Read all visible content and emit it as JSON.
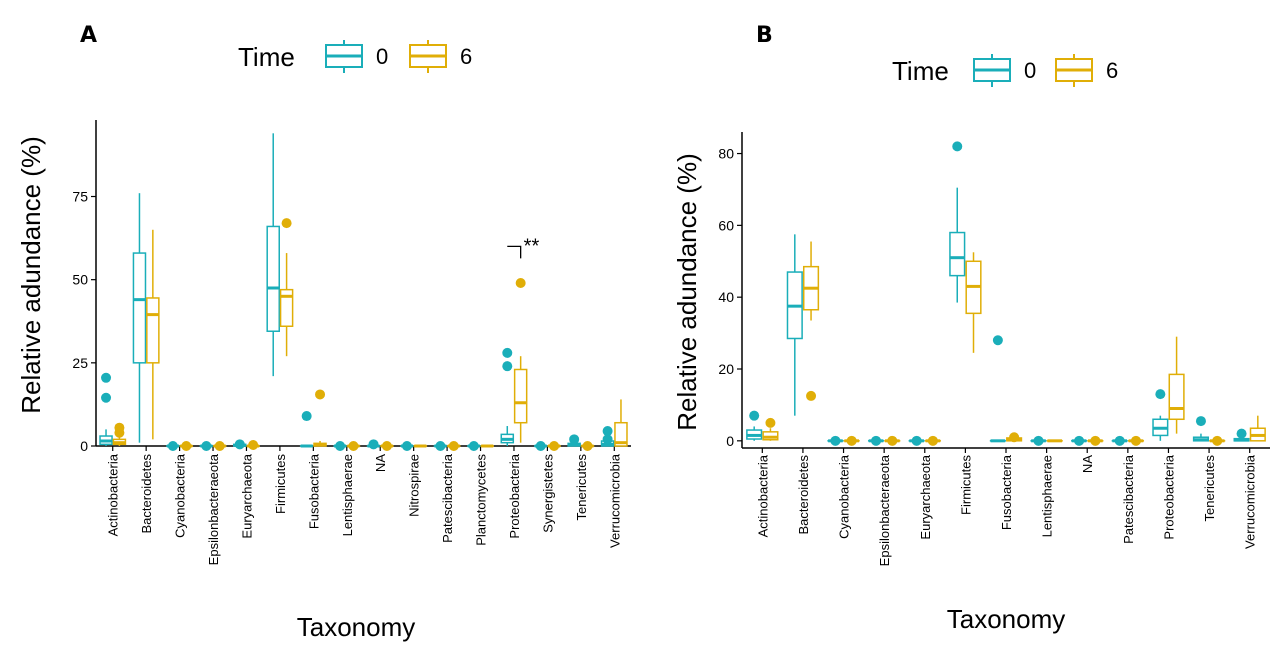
{
  "colors": {
    "t0": "#1AAEB9",
    "t6": "#E0AE07"
  },
  "chart_data": [
    {
      "panel": "A",
      "type": "box",
      "title": "",
      "xlabel": "Taxonomy",
      "ylabel": "Relative adundance (%)",
      "legend": {
        "title": "Time",
        "labels": [
          "0",
          "6"
        ],
        "position": "top"
      },
      "ylim": [
        0,
        98
      ],
      "yticks": [
        0,
        25,
        50,
        75
      ],
      "ytick_labels": [
        "0",
        "25",
        "50",
        "75"
      ],
      "categories": [
        "Actinobacteria",
        "Bacteroidetes",
        "Cyanobacteria",
        "Epsilonbacteraeota",
        "Euryarchaeota",
        "Firmicutes",
        "Fusobacteria",
        "Lentisphaerae",
        "NA",
        "Nitrospirae",
        "Patescibacteria",
        "Planctomycetes",
        "Proteobacteria",
        "Synergistetes",
        "Tenericutes",
        "Verrucomicrobia"
      ],
      "series": [
        {
          "name": "0",
          "boxes": [
            {
              "q1": 0.5,
              "med": 1.5,
              "q3": 3,
              "lo": 0,
              "hi": 5,
              "out": [
                14.5,
                20.5
              ]
            },
            {
              "q1": 25,
              "med": 44,
              "q3": 58,
              "lo": 1,
              "hi": 76,
              "out": []
            },
            {
              "q1": 0,
              "med": 0,
              "q3": 0,
              "lo": 0,
              "hi": 0,
              "out": [
                0
              ]
            },
            {
              "q1": 0,
              "med": 0,
              "q3": 0,
              "lo": 0,
              "hi": 0,
              "out": [
                0
              ]
            },
            {
              "q1": 0,
              "med": 0.2,
              "q3": 0.5,
              "lo": 0,
              "hi": 0.8,
              "out": [
                0.5
              ]
            },
            {
              "q1": 34.5,
              "med": 47.5,
              "q3": 66,
              "lo": 21,
              "hi": 94,
              "out": []
            },
            {
              "q1": 0,
              "med": 0,
              "q3": 0,
              "lo": 0,
              "hi": 0,
              "out": [
                9
              ]
            },
            {
              "q1": 0,
              "med": 0,
              "q3": 0,
              "lo": 0,
              "hi": 0,
              "out": [
                0
              ]
            },
            {
              "q1": 0,
              "med": 0,
              "q3": 0,
              "lo": 0,
              "hi": 0,
              "out": [
                0.5
              ]
            },
            {
              "q1": 0,
              "med": 0,
              "q3": 0,
              "lo": 0,
              "hi": 0,
              "out": [
                0
              ]
            },
            {
              "q1": 0,
              "med": 0,
              "q3": 0,
              "lo": 0,
              "hi": 0,
              "out": [
                0
              ]
            },
            {
              "q1": 0,
              "med": 0,
              "q3": 0,
              "lo": 0,
              "hi": 0,
              "out": [
                0
              ]
            },
            {
              "q1": 1,
              "med": 2,
              "q3": 3.5,
              "lo": 0,
              "hi": 6,
              "out": [
                24,
                28
              ]
            },
            {
              "q1": 0,
              "med": 0,
              "q3": 0,
              "lo": 0,
              "hi": 0,
              "out": [
                0
              ]
            },
            {
              "q1": 0,
              "med": 0.3,
              "q3": 0.8,
              "lo": 0,
              "hi": 1.5,
              "out": [
                2
              ]
            },
            {
              "q1": 0,
              "med": 0.5,
              "q3": 1.5,
              "lo": 0,
              "hi": 3,
              "out": [
                2,
                4.5
              ]
            }
          ]
        },
        {
          "name": "6",
          "boxes": [
            {
              "q1": 0.5,
              "med": 1,
              "q3": 2,
              "lo": 0,
              "hi": 3,
              "out": [
                4,
                5.5
              ]
            },
            {
              "q1": 25,
              "med": 39.5,
              "q3": 44.5,
              "lo": 2,
              "hi": 65,
              "out": []
            },
            {
              "q1": 0,
              "med": 0,
              "q3": 0,
              "lo": 0,
              "hi": 0,
              "out": [
                0
              ]
            },
            {
              "q1": 0,
              "med": 0,
              "q3": 0,
              "lo": 0,
              "hi": 0,
              "out": [
                0
              ]
            },
            {
              "q1": 0,
              "med": 0,
              "q3": 0,
              "lo": 0,
              "hi": 0,
              "out": [
                0.3
              ]
            },
            {
              "q1": 36,
              "med": 45,
              "q3": 47,
              "lo": 27,
              "hi": 58,
              "out": [
                67
              ]
            },
            {
              "q1": 0,
              "med": 0.3,
              "q3": 0.8,
              "lo": 0,
              "hi": 1.5,
              "out": [
                15.5
              ]
            },
            {
              "q1": 0,
              "med": 0,
              "q3": 0,
              "lo": 0,
              "hi": 0,
              "out": [
                0
              ]
            },
            {
              "q1": 0,
              "med": 0,
              "q3": 0,
              "lo": 0,
              "hi": 0,
              "out": [
                0
              ]
            },
            {
              "q1": 0,
              "med": 0,
              "q3": 0,
              "lo": 0,
              "hi": 0,
              "out": []
            },
            {
              "q1": 0,
              "med": 0,
              "q3": 0,
              "lo": 0,
              "hi": 0,
              "out": [
                0
              ]
            },
            {
              "q1": 0,
              "med": 0,
              "q3": 0,
              "lo": 0,
              "hi": 0,
              "out": []
            },
            {
              "q1": 7,
              "med": 13,
              "q3": 23,
              "lo": 1,
              "hi": 27,
              "out": [
                49
              ]
            },
            {
              "q1": 0,
              "med": 0,
              "q3": 0,
              "lo": 0,
              "hi": 0,
              "out": [
                0
              ]
            },
            {
              "q1": 0,
              "med": 0,
              "q3": 0,
              "lo": 0,
              "hi": 0,
              "out": [
                0
              ]
            },
            {
              "q1": 0,
              "med": 1,
              "q3": 7,
              "lo": 0,
              "hi": 14,
              "out": []
            }
          ]
        }
      ],
      "annotations": [
        {
          "category": "Proteobacteria",
          "text": "**",
          "y": 60
        }
      ]
    },
    {
      "panel": "B",
      "type": "box",
      "title": "",
      "xlabel": "Taxonomy",
      "ylabel": "Relative adundance (%)",
      "legend": {
        "title": "Time",
        "labels": [
          "0",
          "6"
        ],
        "position": "top"
      },
      "ylim": [
        -2,
        86
      ],
      "yticks": [
        0,
        20,
        40,
        60,
        80
      ],
      "ytick_labels": [
        "0",
        "20",
        "40",
        "60",
        "80"
      ],
      "categories": [
        "Actinobacteria",
        "Bacteroidetes",
        "Cyanobacteria",
        "Epsilonbacteraeota",
        "Euryarchaeota",
        "Firmicutes",
        "Fusobacteria",
        "Lentisphaerae",
        "NA",
        "Patescibacteria",
        "Proteobacteria",
        "Tenericutes",
        "Verrucomicrobia"
      ],
      "series": [
        {
          "name": "0",
          "boxes": [
            {
              "q1": 0.5,
              "med": 1.5,
              "q3": 3,
              "lo": 0,
              "hi": 4,
              "out": [
                7
              ]
            },
            {
              "q1": 28.5,
              "med": 37.5,
              "q3": 47,
              "lo": 7,
              "hi": 57.5,
              "out": []
            },
            {
              "q1": 0,
              "med": 0,
              "q3": 0,
              "lo": 0,
              "hi": 0,
              "out": [
                0
              ]
            },
            {
              "q1": 0,
              "med": 0,
              "q3": 0,
              "lo": 0,
              "hi": 0,
              "out": [
                0
              ]
            },
            {
              "q1": 0,
              "med": 0,
              "q3": 0,
              "lo": 0,
              "hi": 0,
              "out": [
                0
              ]
            },
            {
              "q1": 46,
              "med": 51,
              "q3": 58,
              "lo": 38.5,
              "hi": 70.5,
              "out": [
                82
              ]
            },
            {
              "q1": 0,
              "med": 0,
              "q3": 0,
              "lo": 0,
              "hi": 0,
              "out": [
                28
              ]
            },
            {
              "q1": 0,
              "med": 0,
              "q3": 0,
              "lo": 0,
              "hi": 0,
              "out": [
                0
              ]
            },
            {
              "q1": 0,
              "med": 0,
              "q3": 0,
              "lo": 0,
              "hi": 0,
              "out": [
                0
              ]
            },
            {
              "q1": 0,
              "med": 0,
              "q3": 0,
              "lo": 0,
              "hi": 0,
              "out": [
                0
              ]
            },
            {
              "q1": 1.5,
              "med": 3.5,
              "q3": 6,
              "lo": 0,
              "hi": 7,
              "out": [
                13
              ]
            },
            {
              "q1": 0,
              "med": 0.3,
              "q3": 1,
              "lo": 0,
              "hi": 2,
              "out": [
                5.5
              ]
            },
            {
              "q1": 0,
              "med": 0.2,
              "q3": 0.6,
              "lo": 0,
              "hi": 1,
              "out": [
                2
              ]
            }
          ]
        },
        {
          "name": "6",
          "boxes": [
            {
              "q1": 0.3,
              "med": 1,
              "q3": 2.5,
              "lo": 0,
              "hi": 3.5,
              "out": [
                5
              ]
            },
            {
              "q1": 36.5,
              "med": 42.5,
              "q3": 48.5,
              "lo": 33.5,
              "hi": 55.5,
              "out": [
                12.5
              ]
            },
            {
              "q1": 0,
              "med": 0,
              "q3": 0,
              "lo": 0,
              "hi": 0,
              "out": [
                0
              ]
            },
            {
              "q1": 0,
              "med": 0,
              "q3": 0,
              "lo": 0,
              "hi": 0,
              "out": [
                0
              ]
            },
            {
              "q1": 0,
              "med": 0,
              "q3": 0,
              "lo": 0,
              "hi": 0,
              "out": [
                0
              ]
            },
            {
              "q1": 35.5,
              "med": 43,
              "q3": 50,
              "lo": 24.5,
              "hi": 52.5,
              "out": []
            },
            {
              "q1": 0,
              "med": 0.3,
              "q3": 0.8,
              "lo": 0,
              "hi": 1.5,
              "out": [
                1
              ]
            },
            {
              "q1": 0,
              "med": 0,
              "q3": 0,
              "lo": 0,
              "hi": 0,
              "out": []
            },
            {
              "q1": 0,
              "med": 0,
              "q3": 0,
              "lo": 0,
              "hi": 0,
              "out": [
                0
              ]
            },
            {
              "q1": 0,
              "med": 0,
              "q3": 0,
              "lo": 0,
              "hi": 0,
              "out": [
                0
              ]
            },
            {
              "q1": 6,
              "med": 9,
              "q3": 18.5,
              "lo": 2,
              "hi": 29,
              "out": []
            },
            {
              "q1": 0,
              "med": 0,
              "q3": 0,
              "lo": 0,
              "hi": 0,
              "out": [
                0
              ]
            },
            {
              "q1": 0,
              "med": 1.5,
              "q3": 3.5,
              "lo": 0,
              "hi": 7,
              "out": []
            }
          ]
        }
      ],
      "annotations": []
    }
  ]
}
